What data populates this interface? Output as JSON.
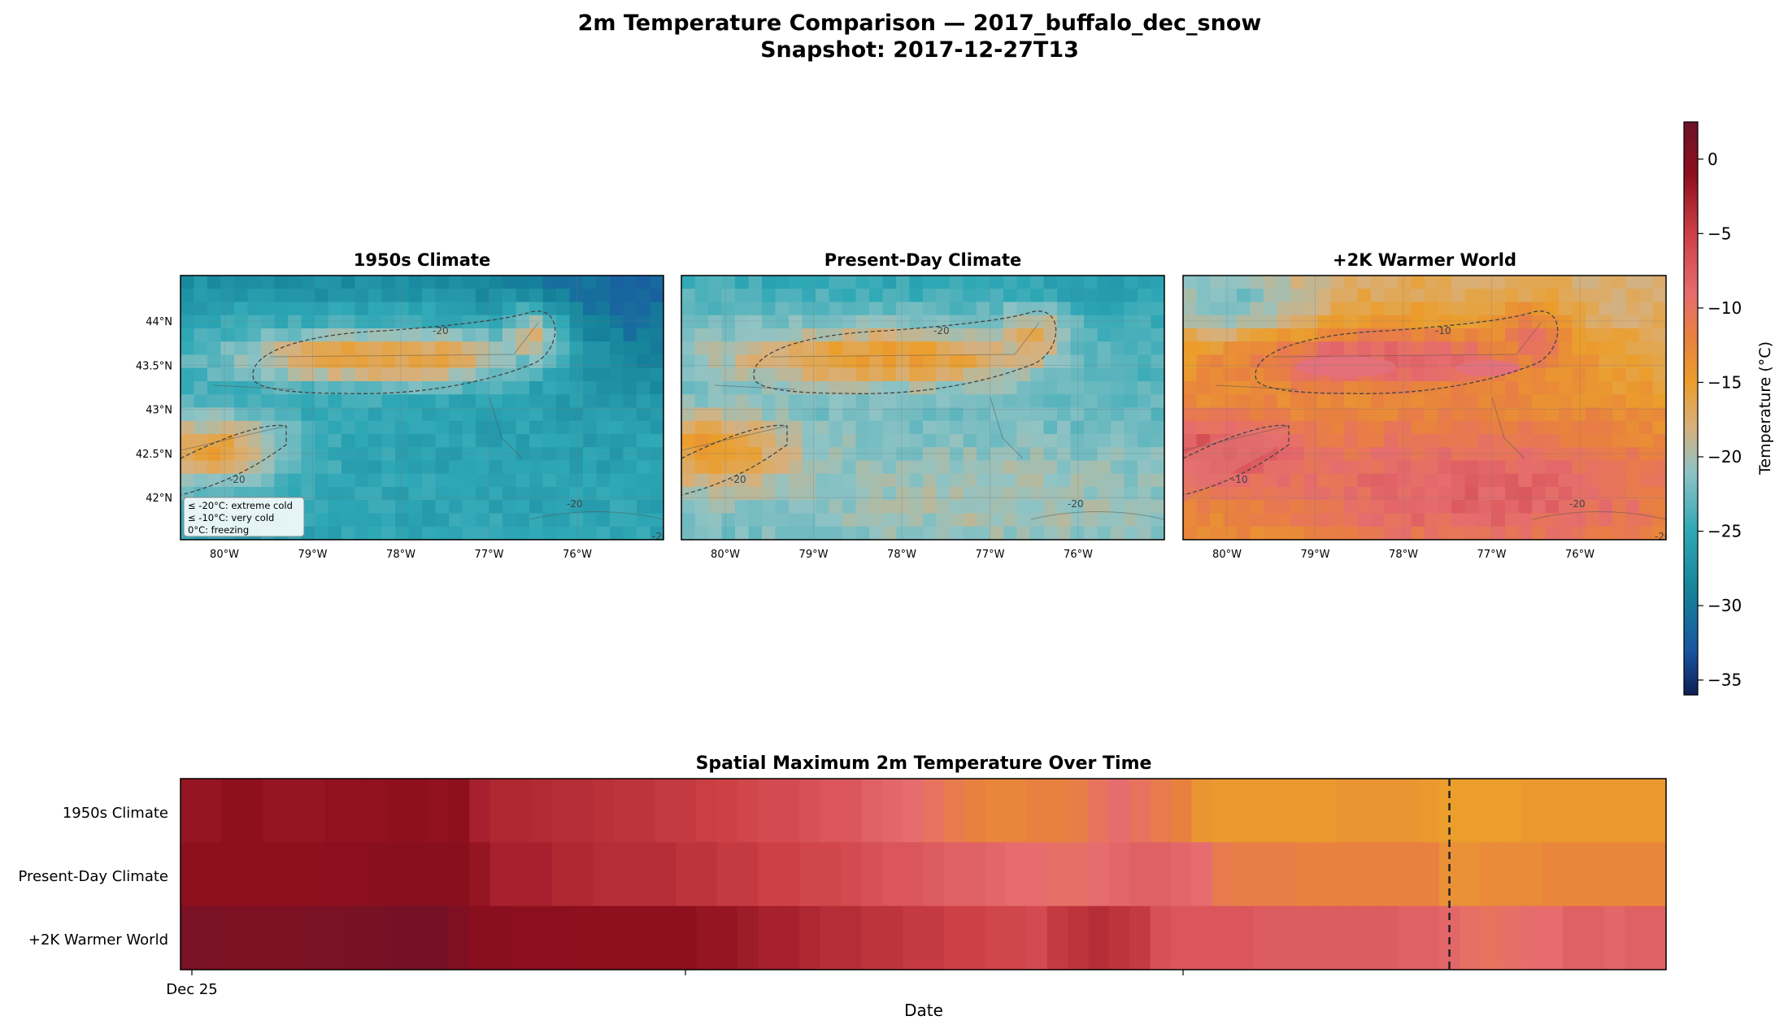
{
  "figure": {
    "title_line1": "2m Temperature Comparison — 2017_buffalo_dec_snow",
    "title_line2": "Snapshot: 2017-12-27T13"
  },
  "colorbar": {
    "label": "Temperature (°C)",
    "ticks": [
      0,
      -5,
      -10,
      -15,
      -20,
      -25,
      -30,
      -35
    ],
    "range": [
      -36,
      2.5
    ],
    "stops": [
      {
        "t": -36,
        "c": "#0e1f55"
      },
      {
        "t": -33,
        "c": "#1a56a1"
      },
      {
        "t": -29,
        "c": "#15839a"
      },
      {
        "t": -25,
        "c": "#2fa8b6"
      },
      {
        "t": -21,
        "c": "#8ec3c5"
      },
      {
        "t": -18,
        "c": "#d7b07c"
      },
      {
        "t": -15,
        "c": "#eb9e2c"
      },
      {
        "t": -12,
        "c": "#e8813f"
      },
      {
        "t": -9,
        "c": "#e66c6e"
      },
      {
        "t": -5,
        "c": "#cd4046"
      },
      {
        "t": -1,
        "c": "#8e0f1e"
      },
      {
        "t": 2.5,
        "c": "#6b1228"
      }
    ]
  },
  "maps": [
    {
      "title": "1950s Climate",
      "has_y_ticks": true,
      "contours": [
        "-20",
        "-20",
        "-20",
        "-20"
      ],
      "legend": [
        "≤ -20°C: extreme cold",
        "≤ -10°C: very cold",
        "0°C: freezing"
      ]
    },
    {
      "title": "Present-Day Climate",
      "has_y_ticks": false,
      "contours": [
        "-20",
        "-20",
        "-20"
      ]
    },
    {
      "title": "+2K Warmer World",
      "has_y_ticks": false,
      "contours": [
        "-10",
        "-10",
        "-20",
        "-20"
      ]
    }
  ],
  "map_axes": {
    "x_ticks": [
      "80°W",
      "79°W",
      "78°W",
      "77°W",
      "76°W"
    ],
    "y_ticks": [
      "44°N",
      "43.5°N",
      "43°N",
      "42.5°N",
      "42°N"
    ]
  },
  "timeseries": {
    "title": "Spatial Maximum 2m Temperature Over Time",
    "xlabel": "Date",
    "x_tick_label": "Dec 25",
    "rows": [
      "1950s Climate",
      "Present-Day Climate",
      "+2K Warmer World"
    ]
  },
  "chart_data": {
    "type": "heatmap",
    "title": "Spatial Maximum 2m Temperature Over Time",
    "xlabel": "Date",
    "ylabel": "",
    "x_tick_labels": [
      "Dec 25"
    ],
    "snapshot_index": 61,
    "rows": [
      "1950s Climate",
      "Present-Day Climate",
      "+2K Warmer World"
    ],
    "values": [
      [
        -1.5,
        -1.5,
        -1.0,
        -1.0,
        -1.5,
        -1.5,
        -1.5,
        -1.2,
        -1.2,
        -1.2,
        -1.0,
        -1.0,
        -1.2,
        -1.0,
        -2.5,
        -3.0,
        -3.0,
        -3.2,
        -3.5,
        -3.5,
        -3.8,
        -4.0,
        -4.0,
        -4.5,
        -4.5,
        -4.8,
        -5.0,
        -5.5,
        -6.0,
        -6.0,
        -6.5,
        -7.0,
        -7.0,
        -8.0,
        -8.5,
        -9.0,
        -10.0,
        -11.0,
        -12.0,
        -12.5,
        -12.5,
        -12.0,
        -12.0,
        -11.5,
        -10.0,
        -9.0,
        -10.0,
        -11.0,
        -12.0,
        -14.0,
        -14.5,
        -14.5,
        -14.5,
        -14.5,
        -14.5,
        -14.5,
        -14.0,
        -14.0,
        -14.0,
        -14.0,
        -14.5,
        -15.0,
        -15.0,
        -15.0,
        -15.0,
        -14.5,
        -14.5,
        -14.5,
        -14.5,
        -14.5,
        -14.5,
        -14.5
      ],
      [
        -1.0,
        -1.0,
        -1.0,
        -1.0,
        -1.0,
        -1.0,
        -1.0,
        -0.8,
        -0.8,
        -0.5,
        -0.5,
        -0.5,
        -0.5,
        -0.5,
        -1.5,
        -2.5,
        -2.5,
        -2.5,
        -3.0,
        -3.0,
        -3.5,
        -3.5,
        -3.5,
        -3.5,
        -4.0,
        -4.0,
        -4.5,
        -4.5,
        -5.0,
        -5.0,
        -5.5,
        -5.5,
        -6.0,
        -6.5,
        -7.0,
        -7.0,
        -7.5,
        -8.0,
        -8.0,
        -8.5,
        -9.0,
        -9.0,
        -9.5,
        -9.5,
        -9.0,
        -8.5,
        -8.0,
        -8.0,
        -8.5,
        -9.0,
        -11.0,
        -11.5,
        -11.5,
        -11.5,
        -12.0,
        -12.0,
        -12.0,
        -12.0,
        -12.0,
        -12.0,
        -12.0,
        -13.5,
        -13.5,
        -13.0,
        -13.0,
        -13.0,
        -12.5,
        -12.5,
        -12.5,
        -12.5,
        -12.5,
        -12.5
      ],
      [
        1.0,
        1.0,
        0.8,
        0.8,
        0.8,
        0.8,
        1.0,
        1.0,
        1.2,
        1.2,
        1.5,
        1.5,
        1.5,
        0.5,
        -0.5,
        -0.5,
        -0.8,
        -0.8,
        -0.8,
        -1.0,
        -1.0,
        -1.0,
        -1.0,
        -1.0,
        -1.0,
        -1.5,
        -1.5,
        -2.0,
        -2.5,
        -2.5,
        -3.0,
        -3.5,
        -3.5,
        -4.0,
        -4.0,
        -4.5,
        -4.5,
        -5.0,
        -5.0,
        -5.5,
        -5.5,
        -6.0,
        -4.5,
        -4.0,
        -3.5,
        -4.0,
        -4.5,
        -6.5,
        -7.0,
        -7.0,
        -7.0,
        -7.0,
        -7.5,
        -7.5,
        -7.5,
        -7.5,
        -7.5,
        -7.5,
        -7.5,
        -8.0,
        -8.0,
        -8.5,
        -9.5,
        -10.0,
        -9.5,
        -9.0,
        -9.0,
        -8.0,
        -8.0,
        -8.5,
        -8.0,
        -8.0
      ]
    ]
  }
}
